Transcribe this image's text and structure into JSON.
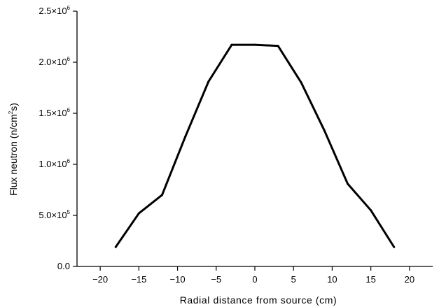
{
  "chart_data": {
    "type": "line",
    "title": "",
    "xlabel": "Radial distance from source (cm)",
    "ylabel_parts": {
      "main": "Flux neutron (n/cm",
      "sup": "2",
      "end": "s)"
    },
    "xlim": [
      -23,
      23
    ],
    "ylim": [
      0,
      2500000
    ],
    "grid": false,
    "legend": "none",
    "line_color": "#000000",
    "x_ticks": [
      {
        "value": -20,
        "label": "−20"
      },
      {
        "value": -15,
        "label": "−15"
      },
      {
        "value": -10,
        "label": "−10"
      },
      {
        "value": -5,
        "label": "−5"
      },
      {
        "value": 0,
        "label": "0"
      },
      {
        "value": 5,
        "label": "5"
      },
      {
        "value": 10,
        "label": "10"
      },
      {
        "value": 15,
        "label": "15"
      },
      {
        "value": 20,
        "label": "20"
      }
    ],
    "y_ticks": [
      {
        "value": 0,
        "base": "0.0",
        "exp": ""
      },
      {
        "value": 500000,
        "base": "5.0×10",
        "exp": "5"
      },
      {
        "value": 1000000,
        "base": "1.0×10",
        "exp": "6"
      },
      {
        "value": 1500000,
        "base": "1.5×10",
        "exp": "6"
      },
      {
        "value": 2000000,
        "base": "2.0×10",
        "exp": "6"
      },
      {
        "value": 2500000,
        "base": "2.5×10",
        "exp": "6"
      }
    ],
    "series": [
      {
        "x": [
          -18,
          -15,
          -12,
          -9,
          -6,
          -3,
          0,
          3,
          6,
          9,
          12,
          15,
          18
        ],
        "y": [
          190000,
          520000,
          700000,
          1270000,
          1810000,
          2170000,
          2170000,
          2160000,
          1800000,
          1330000,
          810000,
          550000,
          190000
        ]
      }
    ]
  }
}
